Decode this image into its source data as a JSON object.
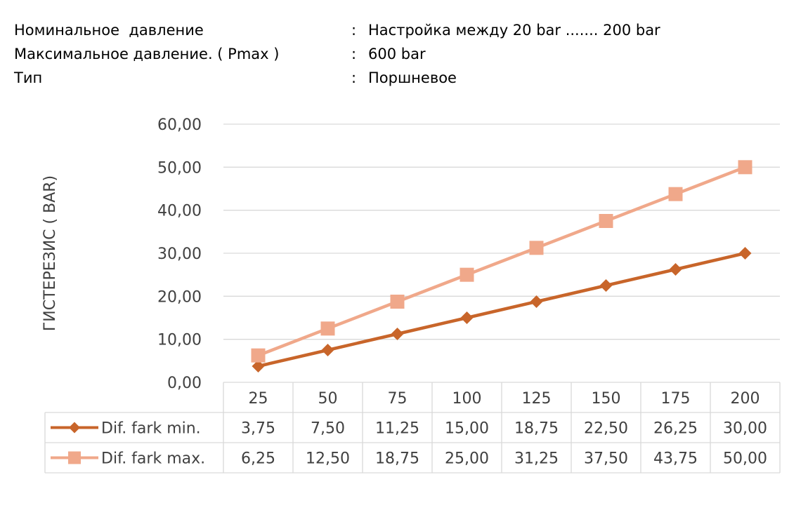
{
  "specs": [
    {
      "label": "Номинальное  давление",
      "sep": ":",
      "value": "Настройка между 20 bar ....... 200 bar"
    },
    {
      "label": "Максимальное давление. ( Pmax )",
      "sep": ":",
      "value": "600 bar"
    },
    {
      "label": "Тип",
      "sep": ":",
      "value": "Поршневое"
    }
  ],
  "chart_data": {
    "type": "line",
    "title": "",
    "xlabel": "",
    "ylabel": "ГИСТЕРЕЗИС ( BAR)",
    "categories": [
      "25",
      "50",
      "75",
      "100",
      "125",
      "150",
      "175",
      "200"
    ],
    "ylim": [
      0,
      60
    ],
    "yticks": [
      "0,00",
      "10,00",
      "20,00",
      "30,00",
      "40,00",
      "50,00",
      "60,00"
    ],
    "grid": true,
    "legend": "data-table",
    "series": [
      {
        "name": "Dif. fark min.",
        "color": "#c8652a",
        "marker": "diamond",
        "values": [
          3.75,
          7.5,
          11.25,
          15.0,
          18.75,
          22.5,
          26.25,
          30.0
        ],
        "labels": [
          "3,75",
          "7,50",
          "11,25",
          "15,00",
          "18,75",
          "22,50",
          "26,25",
          "30,00"
        ]
      },
      {
        "name": "Dif. fark max.",
        "color": "#f0a88a",
        "marker": "square",
        "values": [
          6.25,
          12.5,
          18.75,
          25.0,
          31.25,
          37.5,
          43.75,
          50.0
        ],
        "labels": [
          "6,25",
          "12,50",
          "18,75",
          "25,00",
          "31,25",
          "37,50",
          "43,75",
          "50,00"
        ]
      }
    ]
  }
}
